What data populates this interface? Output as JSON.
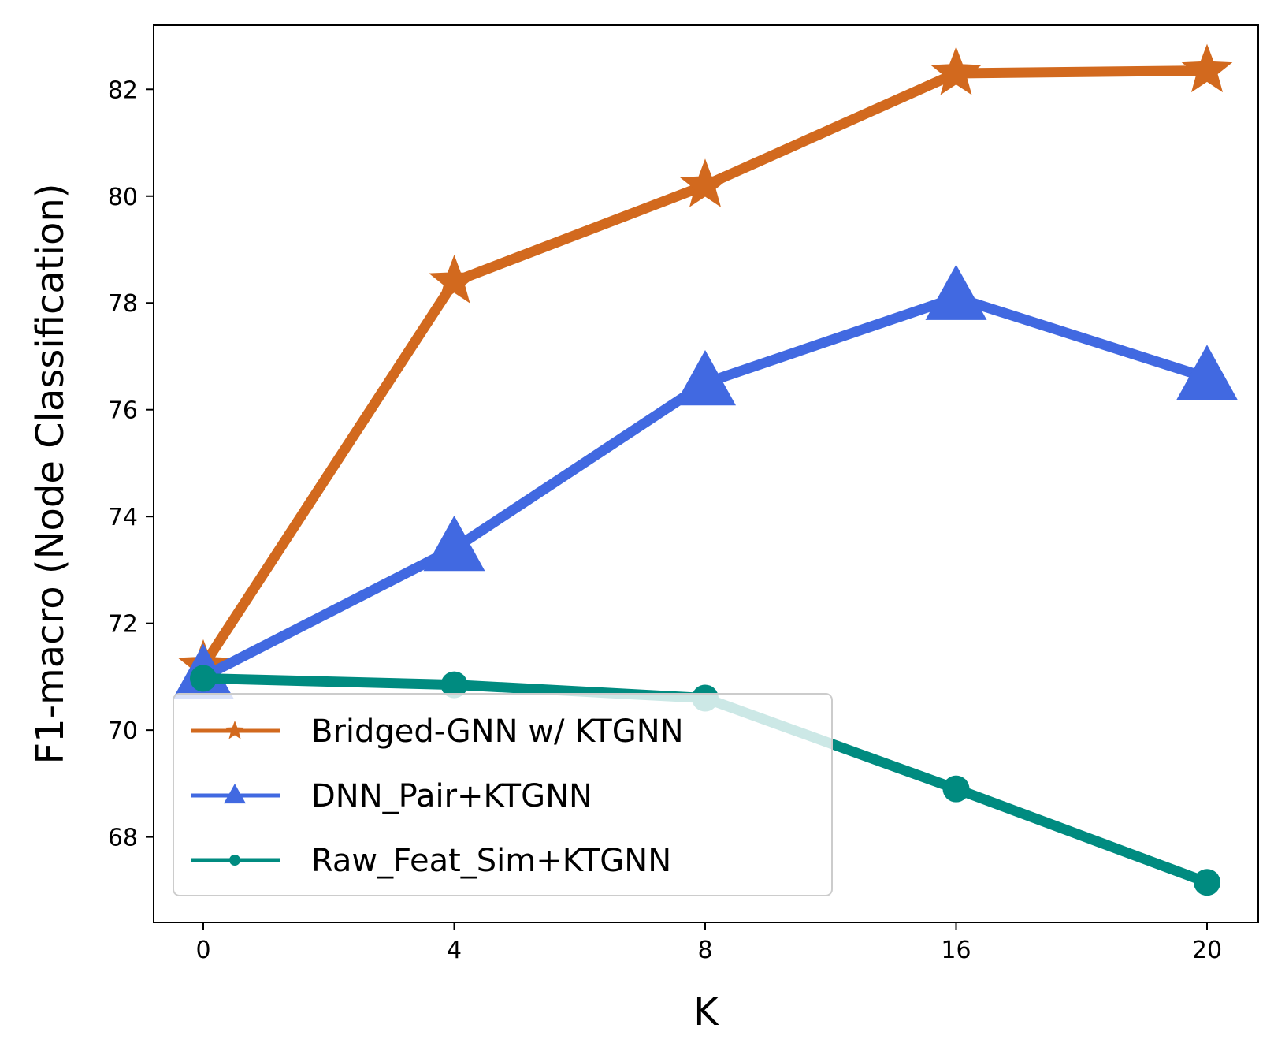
{
  "chart_data": {
    "type": "line",
    "title": "",
    "xlabel": "K",
    "ylabel": "F1-macro (Node Classification)",
    "categories": [
      "0",
      "4",
      "8",
      "16",
      "20"
    ],
    "ylim": [
      66.4,
      83.2
    ],
    "yticks": [
      68,
      70,
      72,
      74,
      76,
      78,
      80,
      82
    ],
    "grid": false,
    "legend_position": "lower-left",
    "series": [
      {
        "name": "Bridged-GNN w/ KTGNN",
        "color": "#D2691E",
        "marker": "star",
        "values": [
          71.2,
          78.4,
          80.2,
          82.3,
          82.35
        ]
      },
      {
        "name": "DNN_Pair+KTGNN",
        "color": "#4169E1",
        "marker": "triangle",
        "values": [
          71.0,
          73.4,
          76.5,
          78.1,
          76.6
        ]
      },
      {
        "name": "Raw_Feat_Sim+KTGNN",
        "color": "#008B80",
        "marker": "circle",
        "values": [
          70.97,
          70.85,
          70.6,
          68.9,
          67.15
        ]
      }
    ]
  }
}
